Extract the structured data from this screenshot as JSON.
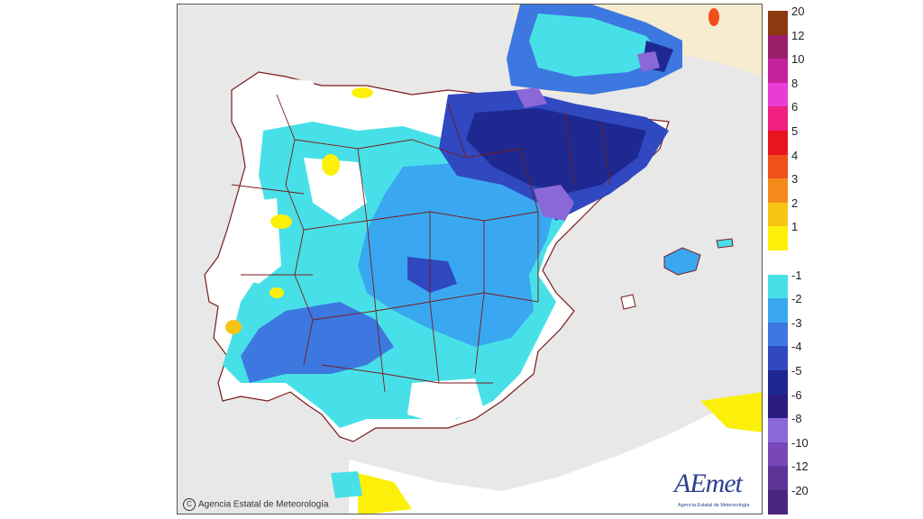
{
  "map": {
    "title": "",
    "copyright": "Agencia Estatal de Meteorología",
    "logo": {
      "text": "AEmet",
      "subtitle": "Agencia Estatal de Meteorología"
    },
    "colors": {
      "sea": "#e8e8e8",
      "land_neutral": "#ffffff",
      "border_lines": "#7a1a1a",
      "france_land": "#f6ecd0"
    }
  },
  "legend": {
    "unit": "",
    "entries": [
      {
        "label": "20",
        "color": "#8b3a10"
      },
      {
        "label": "12",
        "color": "#9b1e6b"
      },
      {
        "label": "10",
        "color": "#c4229a"
      },
      {
        "label": "8",
        "color": "#e83cd6"
      },
      {
        "label": "6",
        "color": "#f02080"
      },
      {
        "label": "5",
        "color": "#e8141e"
      },
      {
        "label": "4",
        "color": "#f0501a"
      },
      {
        "label": "3",
        "color": "#f48a1a"
      },
      {
        "label": "2",
        "color": "#f8c414"
      },
      {
        "label": "1",
        "color": "#fcf00a"
      },
      {
        "label": "",
        "color": "#ffffff"
      },
      {
        "label": "-1",
        "color": "#48e0e8"
      },
      {
        "label": "-2",
        "color": "#3aa8f0"
      },
      {
        "label": "-3",
        "color": "#3c78e0"
      },
      {
        "label": "-4",
        "color": "#3048c0"
      },
      {
        "label": "-5",
        "color": "#1e2890"
      },
      {
        "label": "-6",
        "color": "#2a1c80"
      },
      {
        "label": "-8",
        "color": "#8a68d8"
      },
      {
        "label": "-10",
        "color": "#7848b8"
      },
      {
        "label": "-12",
        "color": "#5e3498"
      },
      {
        "label": "-20",
        "color": "#4a2680"
      }
    ]
  }
}
